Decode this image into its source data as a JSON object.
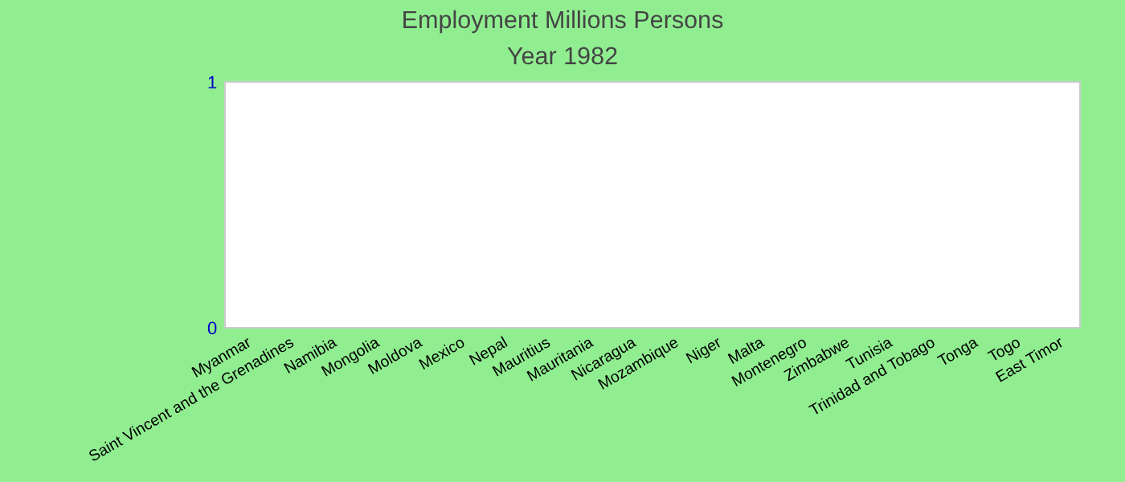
{
  "chart_data": {
    "type": "bar",
    "title": "Employment Millions Persons",
    "subtitle": "Year 1982",
    "categories": [
      "Myanmar",
      "Saint Vincent and the Grenadines",
      "Namibia",
      "Mongolia",
      "Moldova",
      "Mexico",
      "Nepal",
      "Mauritius",
      "Mauritania",
      "Nicaragua",
      "Mozambique",
      "Niger",
      "Malta",
      "Montenegro",
      "Zimbabwe",
      "Tunisia",
      "Trinidad and Tobago",
      "Tonga",
      "Togo",
      "East Timor"
    ],
    "values": [
      null,
      null,
      null,
      null,
      null,
      null,
      null,
      null,
      null,
      null,
      null,
      null,
      null,
      null,
      null,
      null,
      null,
      null,
      null,
      null
    ],
    "ylim": [
      0,
      1
    ],
    "yticks": [
      0,
      1
    ],
    "grid": false,
    "legend": false
  }
}
